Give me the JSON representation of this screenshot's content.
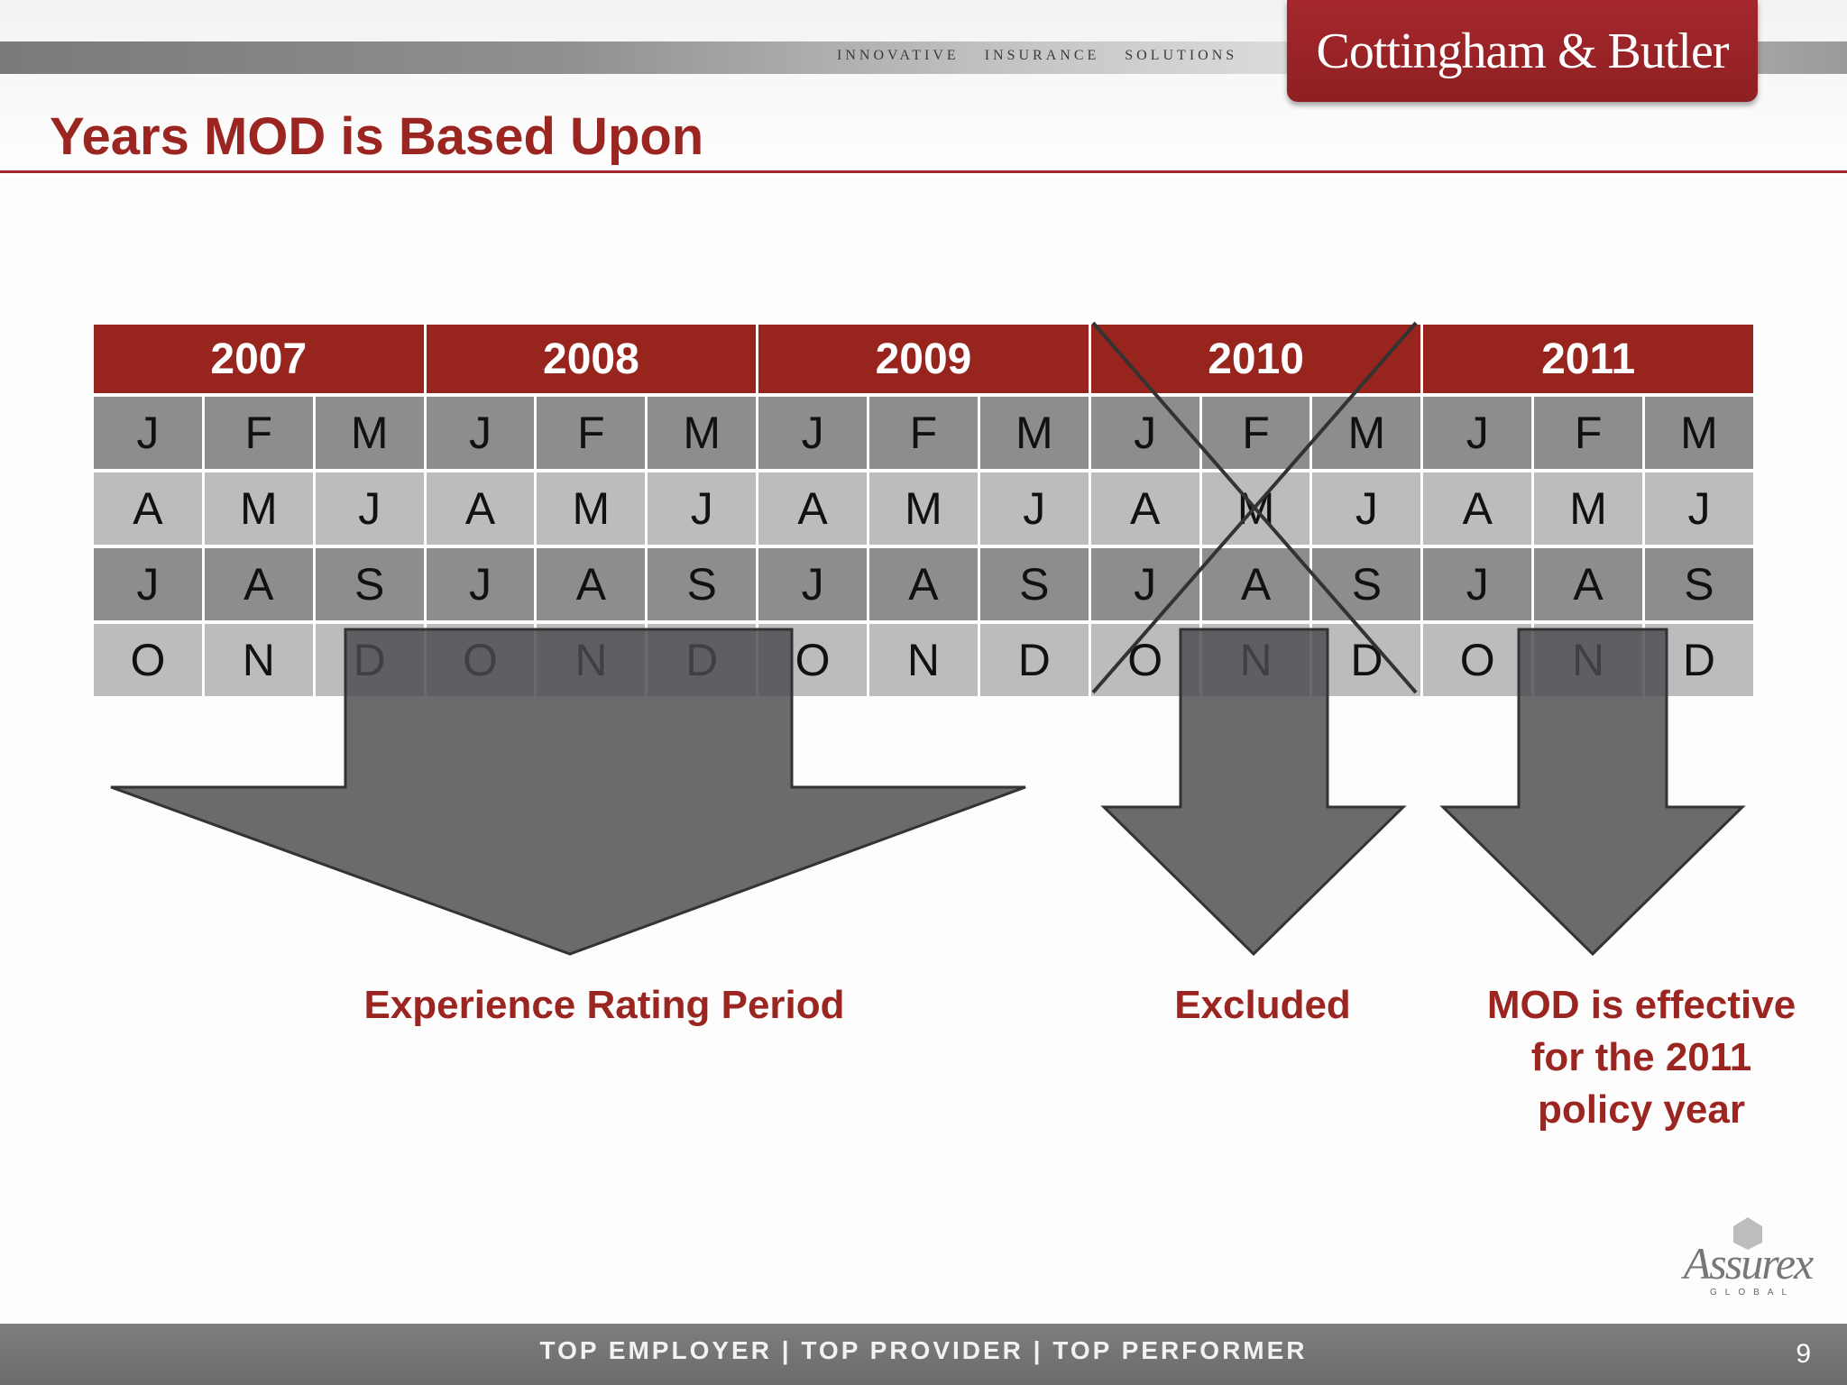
{
  "header": {
    "tagline": [
      "INNOVATIVE",
      "INSURANCE",
      "SOLUTIONS"
    ],
    "brand": "Cottingham & Butler",
    "brand_color": "#9b2520"
  },
  "slide": {
    "title": "Years MOD is Based Upon",
    "page_number": "9"
  },
  "timeline": {
    "years": [
      "2007",
      "2008",
      "2009",
      "2010",
      "2011"
    ],
    "excluded_year": "2010",
    "quarter_rows": [
      [
        "J",
        "F",
        "M"
      ],
      [
        "A",
        "M",
        "J"
      ],
      [
        "J",
        "A",
        "S"
      ],
      [
        "O",
        "N",
        "D"
      ]
    ]
  },
  "labels": {
    "experience": "Experience Rating Period",
    "excluded": "Excluded",
    "mod_lines": [
      "MOD is effective",
      "for the 2011",
      "policy year"
    ]
  },
  "footer": {
    "text": "TOP EMPLOYER  |  TOP PROVIDER  |  TOP PERFORMER",
    "partner_logo": "Assurex",
    "partner_sub": "GLOBAL"
  }
}
